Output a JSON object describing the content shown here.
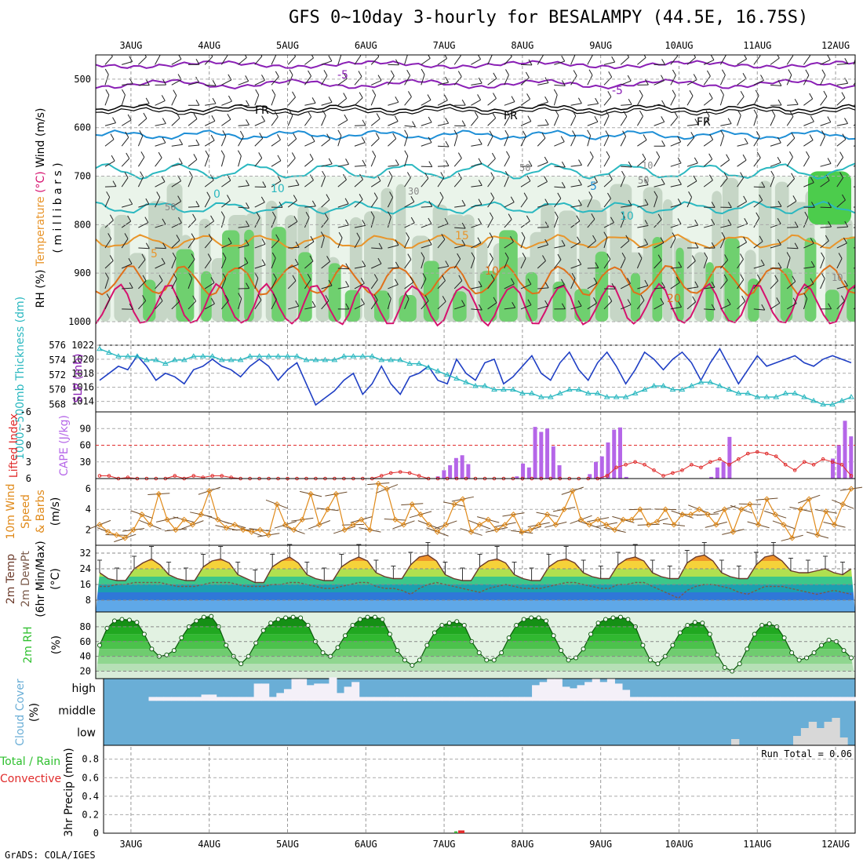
{
  "title": "GFS 0~10day 3-hourly for BESALAMPY (44.5E, 16.75S)",
  "credit": "GrADS: COLA/IGES",
  "dates": [
    "3AUG",
    "4AUG",
    "5AUG",
    "6AUG",
    "7AUG",
    "8AUG",
    "9AUG",
    "10AUG",
    "11AUG",
    "12AUG"
  ],
  "colors": {
    "purple": "#8a1fb5",
    "cyan": "#1aa8c0",
    "blue": "#1e8fd6",
    "orange": "#e8952b",
    "dark_orange": "#e0701a",
    "magenta": "#d6116e",
    "navy": "#1f3fc4",
    "teal": "#2bb8c0",
    "cape": "#b566e8",
    "li": "#e02b2b",
    "wind10": "#e08a1a",
    "rhgreen": "#2fc02f",
    "cloud_bg": "#6aaed6",
    "cloud_fill": "#f4f0f8",
    "rh_shade": "#6fd06f"
  },
  "chart_data": [
    {
      "type": "contour",
      "panel": "upper-air",
      "ylabel_parts": [
        "RH (%)",
        "Temperature (°C)",
        "Wind (m/s)"
      ],
      "ylabel_mb": "( m i l l i b a r s )",
      "y_ticks": [
        500,
        600,
        700,
        800,
        900,
        1000
      ],
      "ylim": [
        1000,
        450
      ],
      "temperature_labels": [
        "-5",
        "-5",
        "FR",
        "FR",
        "FR",
        "0",
        "5",
        "10",
        "10",
        "15",
        "20",
        "5"
      ],
      "rh_labels": [
        "10",
        "50",
        "30",
        "50",
        "10",
        "50"
      ]
    },
    {
      "type": "line",
      "panel": "sfc",
      "ylabel_left": "1000~500mb Thickness (dm)",
      "ylabel_right": "SLP (mb)",
      "left_ticks": [
        568,
        570,
        572,
        574,
        576
      ],
      "right_ticks": [
        1014,
        1016,
        1018,
        1020,
        1022
      ],
      "left_ylim": [
        567,
        576
      ],
      "right_ylim": [
        1012.5,
        1022
      ],
      "series": [
        {
          "name": "SLP",
          "axis": "right",
          "values": [
            1017.0,
            1018.0,
            1019.0,
            1018.5,
            1020.5,
            1019.0,
            1017.0,
            1018.0,
            1017.5,
            1016.5,
            1018.5,
            1019.0,
            1020.0,
            1019.0,
            1018.5,
            1017.5,
            1019.0,
            1020.0,
            1019.0,
            1017.0,
            1018.5,
            1019.5,
            1016.5,
            1013.5,
            1014.5,
            1015.5,
            1017.0,
            1018.0,
            1015.0,
            1016.5,
            1019.0,
            1016.5,
            1015.0,
            1017.5,
            1018.0,
            1019.0,
            1017.0,
            1016.5,
            1020.0,
            1018.0,
            1017.0,
            1019.5,
            1020.0,
            1016.5,
            1017.5,
            1019.0,
            1020.5,
            1018.0,
            1017.0,
            1019.5,
            1021.0,
            1018.5,
            1017.0,
            1019.5,
            1021.0,
            1019.0,
            1016.5,
            1018.5,
            1021.0,
            1020.0,
            1018.5,
            1020.0,
            1021.0,
            1019.5,
            1017.0,
            1019.5,
            1021.5,
            1019.0,
            1016.5,
            1018.5,
            1020.5,
            1019.0,
            1019.5,
            1020.0,
            1020.5,
            1019.5,
            1019.0,
            1020.0,
            1020.5,
            1020.0,
            1019.5
          ]
        },
        {
          "name": "Thickness",
          "axis": "left",
          "values": [
            575.5,
            575.0,
            574.5,
            574.5,
            574.5,
            574.0,
            574.0,
            573.5,
            574.0,
            574.0,
            574.5,
            574.5,
            574.5,
            574.0,
            574.0,
            574.0,
            574.5,
            574.5,
            574.5,
            574.5,
            574.5,
            574.5,
            574.0,
            574.0,
            574.0,
            574.0,
            574.5,
            574.5,
            574.5,
            574.5,
            574.0,
            574.0,
            574.0,
            573.5,
            573.5,
            573.0,
            572.5,
            572.0,
            571.5,
            571.0,
            570.5,
            570.5,
            570.0,
            570.0,
            570.0,
            569.5,
            569.5,
            569.0,
            569.0,
            569.5,
            570.0,
            570.0,
            569.5,
            569.5,
            569.0,
            569.0,
            569.0,
            569.5,
            570.0,
            570.5,
            570.5,
            570.0,
            570.0,
            570.5,
            571.0,
            571.0,
            570.5,
            570.0,
            569.5,
            569.5,
            569.0,
            569.0,
            569.0,
            569.5,
            569.5,
            569.0,
            568.5,
            568.0,
            568.0,
            568.5,
            569.0
          ]
        }
      ]
    },
    {
      "type": "bar",
      "panel": "cape-li",
      "ylabel_left": "Lifted Index",
      "ylabel_right": "CAPE (J/kg)",
      "li_ticks": [
        "-6",
        "-3",
        "0",
        "3",
        "6"
      ],
      "cape_ticks": [
        30,
        60,
        90
      ],
      "cape_ylim": [
        0,
        120
      ],
      "li_ylim": [
        6,
        -6
      ],
      "cape_values": [
        0,
        0,
        0,
        0,
        0,
        0,
        0,
        0,
        0,
        0,
        0,
        0,
        0,
        0,
        0,
        0,
        0,
        0,
        0,
        0,
        0,
        0,
        0,
        0,
        0,
        0,
        0,
        0,
        0,
        0,
        0,
        0,
        0,
        0,
        0,
        0,
        0,
        0,
        0,
        0,
        0,
        0,
        0,
        0,
        0,
        0,
        0,
        0,
        0,
        0,
        0,
        0,
        0,
        0,
        0,
        0,
        4,
        15,
        24,
        37,
        42,
        26,
        0,
        0,
        0,
        0,
        0,
        0,
        0,
        4,
        27,
        20,
        93,
        84,
        90,
        58,
        24,
        0,
        0,
        0,
        0,
        8,
        30,
        40,
        65,
        88,
        92,
        3,
        0,
        0,
        0,
        0,
        0,
        0,
        0,
        0,
        0,
        0,
        0,
        0,
        0,
        3,
        20,
        30,
        75,
        0,
        0,
        0,
        0,
        0,
        0,
        0,
        0,
        0,
        0,
        0,
        0,
        0,
        0,
        0,
        0,
        36,
        60,
        104,
        76
      ],
      "li_values": [
        5.5,
        5.5,
        6,
        5.8,
        6,
        6,
        6,
        6,
        5.5,
        6,
        5.5,
        5.8,
        5.5,
        5.5,
        5.8,
        6,
        6,
        6,
        6,
        6,
        6,
        6,
        6,
        6,
        6,
        6,
        6,
        6,
        6,
        6,
        5.5,
        5.0,
        4.8,
        5.0,
        5.5,
        6,
        6,
        6,
        6,
        6,
        6,
        6,
        6,
        6,
        6,
        6,
        6,
        6,
        6,
        6,
        6,
        6,
        6,
        6,
        5.5,
        4.0,
        3.5,
        3.0,
        3.5,
        4.5,
        5.5,
        5.0,
        4.5,
        3.5,
        4.0,
        3.0,
        2.5,
        3.5,
        2.5,
        1.5,
        1.2,
        1.5,
        2.0,
        3.5,
        4.5,
        3.0,
        3.5,
        2.5,
        3.0,
        3.5,
        5.5
      ]
    },
    {
      "type": "line",
      "panel": "10m-wind",
      "ylabel": [
        "10m Wind",
        "Speed",
        "& Barbs",
        "(m/s)"
      ],
      "y_ticks": [
        2,
        4,
        6
      ],
      "ylim": [
        0.5,
        7
      ],
      "values": [
        2.5,
        1.8,
        1.5,
        1.2,
        2.0,
        3.5,
        2.5,
        5.5,
        3.0,
        2.0,
        3.0,
        2.5,
        3.5,
        5.8,
        3.0,
        2.2,
        2.5,
        2.0,
        1.8,
        2.0,
        1.5,
        4.5,
        2.5,
        2.0,
        3.0,
        5.5,
        2.5,
        4.0,
        5.5,
        2.0,
        2.5,
        3.0,
        2.0,
        6.5,
        6.0,
        3.0,
        2.5,
        4.5,
        3.5,
        2.5,
        1.8,
        2.5,
        4.5,
        5.0,
        1.8,
        2.5,
        3.0,
        2.0,
        2.5,
        3.5,
        1.8,
        2.0,
        2.5,
        3.5,
        2.5,
        4.0,
        5.8,
        3.0,
        2.5,
        3.0,
        2.5,
        2.0,
        3.0,
        3.0,
        4.0,
        2.5,
        2.8,
        4.0,
        2.5,
        3.5,
        3.5,
        4.0,
        3.5,
        2.5,
        4.0,
        1.8,
        4.0,
        4.5,
        2.5,
        5.0,
        3.5,
        2.5,
        1.2,
        4.0,
        5.0,
        1.5,
        3.8,
        2.5,
        4.5,
        6.0
      ]
    },
    {
      "type": "area",
      "panel": "2m-temp",
      "ylabel": [
        "2m Temp",
        "2m DewPt",
        "(6hr Min/Max)",
        "(°C)"
      ],
      "y_ticks": [
        8,
        16,
        24,
        32
      ],
      "ylim": [
        2,
        36
      ],
      "temp_values": [
        22,
        19,
        18,
        18,
        24,
        27,
        29,
        26,
        21,
        19,
        18,
        18,
        25,
        28,
        29,
        27,
        21,
        19,
        17,
        17,
        25,
        28,
        30,
        27,
        21,
        19,
        18,
        18,
        25,
        28,
        30,
        28,
        22,
        20,
        19,
        19,
        26,
        30,
        31,
        28,
        21,
        19,
        18,
        18,
        25,
        28,
        29,
        27,
        21,
        19,
        18,
        18,
        25,
        28,
        29,
        27,
        22,
        20,
        19,
        19,
        26,
        29,
        30,
        28,
        22,
        20,
        19,
        19,
        27,
        30,
        31,
        28,
        22,
        20,
        19,
        19,
        26,
        30,
        31,
        28,
        23,
        22,
        22,
        23,
        24,
        22,
        21,
        24
      ],
      "dew_values": [
        15,
        15,
        16,
        16,
        17,
        17,
        17,
        17,
        16,
        15,
        15,
        15,
        16,
        17,
        17,
        17,
        16,
        15,
        15,
        15,
        16,
        16,
        17,
        17,
        16,
        15,
        14,
        14,
        15,
        16,
        17,
        17,
        15,
        14,
        14,
        13,
        11,
        14,
        16,
        17,
        16,
        15,
        14,
        13,
        12,
        14,
        15,
        16,
        15,
        14,
        14,
        14,
        15,
        16,
        17,
        17,
        16,
        15,
        14,
        14,
        16,
        16,
        17,
        17,
        15,
        13,
        11,
        9,
        13,
        15,
        16,
        16,
        15,
        14,
        12,
        11,
        13,
        15,
        15,
        15,
        14,
        13,
        12,
        11,
        12,
        13,
        12,
        11
      ]
    },
    {
      "type": "area",
      "panel": "2m-rh",
      "ylabel": [
        "2m RH",
        "(%)"
      ],
      "y_ticks": [
        20,
        40,
        60,
        80
      ],
      "ylim": [
        10,
        100
      ],
      "values": [
        55,
        78,
        88,
        90,
        89,
        86,
        70,
        50,
        40,
        42,
        48,
        65,
        80,
        88,
        93,
        94,
        80,
        55,
        40,
        30,
        40,
        58,
        75,
        85,
        90,
        92,
        93,
        92,
        82,
        60,
        45,
        40,
        52,
        68,
        82,
        90,
        93,
        93,
        90,
        70,
        48,
        35,
        28,
        35,
        55,
        72,
        82,
        85,
        87,
        82,
        60,
        45,
        35,
        35,
        45,
        65,
        82,
        90,
        92,
        92,
        88,
        68,
        48,
        35,
        38,
        50,
        70,
        85,
        90,
        92,
        93,
        90,
        80,
        55,
        35,
        30,
        40,
        55,
        72,
        82,
        86,
        85,
        70,
        42,
        25,
        20,
        30,
        50,
        70,
        82,
        84,
        80,
        65,
        45,
        35,
        38,
        45,
        55,
        62,
        60,
        48,
        38
      ]
    },
    {
      "type": "bar",
      "panel": "cloud-cover",
      "ylabel": [
        "Cloud Cover",
        "(%)"
      ],
      "levels": [
        "high",
        "middle",
        "low"
      ],
      "high_values": [
        0,
        0,
        0,
        0,
        0,
        0,
        5,
        5,
        5,
        5,
        5,
        5,
        5,
        8,
        8,
        5,
        5,
        5,
        5,
        5,
        22,
        22,
        5,
        10,
        15,
        28,
        28,
        20,
        22,
        22,
        30,
        10,
        18,
        24,
        5,
        5,
        5,
        5,
        5,
        5,
        5,
        5,
        5,
        5,
        5,
        5,
        5,
        5,
        5,
        5,
        5,
        5,
        5,
        5,
        5,
        5,
        5,
        20,
        24,
        28,
        28,
        18,
        16,
        20,
        24,
        28,
        24,
        28,
        22,
        14,
        5,
        5,
        5,
        5,
        5,
        5,
        5,
        5,
        5,
        5,
        5,
        5,
        5,
        5,
        5,
        5,
        5,
        5,
        5,
        5,
        5,
        5,
        5,
        5,
        5,
        5,
        5,
        5,
        5,
        5
      ],
      "low_values": [
        0,
        0,
        0,
        0,
        0,
        0,
        0,
        0,
        0,
        0,
        0,
        0,
        0,
        0,
        0,
        0,
        0,
        0,
        0,
        0,
        0,
        0,
        0,
        0,
        0,
        0,
        0,
        0,
        0,
        0,
        0,
        0,
        0,
        0,
        0,
        0,
        0,
        0,
        0,
        0,
        0,
        0,
        0,
        0,
        0,
        0,
        0,
        0,
        0,
        0,
        0,
        0,
        0,
        0,
        0,
        0,
        0,
        0,
        0,
        0,
        0,
        0,
        0,
        0,
        0,
        0,
        0,
        0,
        0,
        0,
        0,
        0,
        0,
        0,
        0,
        0,
        0,
        0,
        0,
        0,
        0,
        8,
        0,
        0,
        0,
        0,
        0,
        0,
        0,
        12,
        22,
        30,
        22,
        30,
        35,
        10,
        0
      ]
    },
    {
      "type": "bar",
      "panel": "precip",
      "ylabel_left": [
        "Total / Rain",
        "Convective"
      ],
      "ylabel": "3hr Precip (mm)",
      "y_ticks": [
        "0",
        "0.2",
        "0.4",
        "0.6",
        "0.8"
      ],
      "ylim": [
        0,
        0.95
      ],
      "run_total": "Run Total = 0.06",
      "rain_values": [
        {
          "day": 7.18,
          "value": 0.03
        }
      ],
      "conv_values": [
        {
          "day": 7.15,
          "value": 0.02
        }
      ]
    }
  ]
}
